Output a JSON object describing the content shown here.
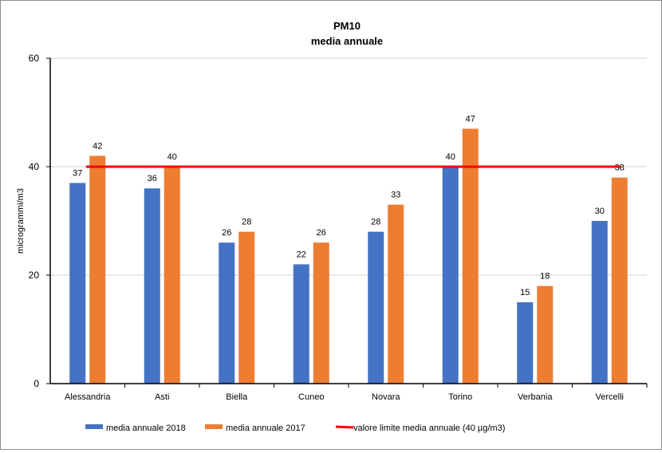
{
  "chart_data": {
    "type": "bar",
    "title": "PM10",
    "subtitle": "media annuale",
    "xlabel": "",
    "ylabel": "microgrammi/m3",
    "ylim": [
      0,
      60
    ],
    "yticks": [
      0,
      20,
      40,
      60
    ],
    "grid": true,
    "legend_placement": "bottom",
    "categories": [
      "Alessandria",
      "Asti",
      "Biella",
      "Cuneo",
      "Novara",
      "Torino",
      "Verbania",
      "Vercelli"
    ],
    "series": [
      {
        "name": "media annuale 2018",
        "color": "#4472C4",
        "values": [
          37,
          36,
          26,
          22,
          28,
          40,
          15,
          30
        ]
      },
      {
        "name": "media annuale 2017",
        "color": "#ED7D31",
        "values": [
          42,
          40,
          28,
          26,
          33,
          47,
          18,
          38
        ]
      }
    ],
    "reference_line": {
      "name": "valore limite media annuale (40 µg/m3)",
      "value": 40,
      "color": "#FF0000"
    }
  }
}
